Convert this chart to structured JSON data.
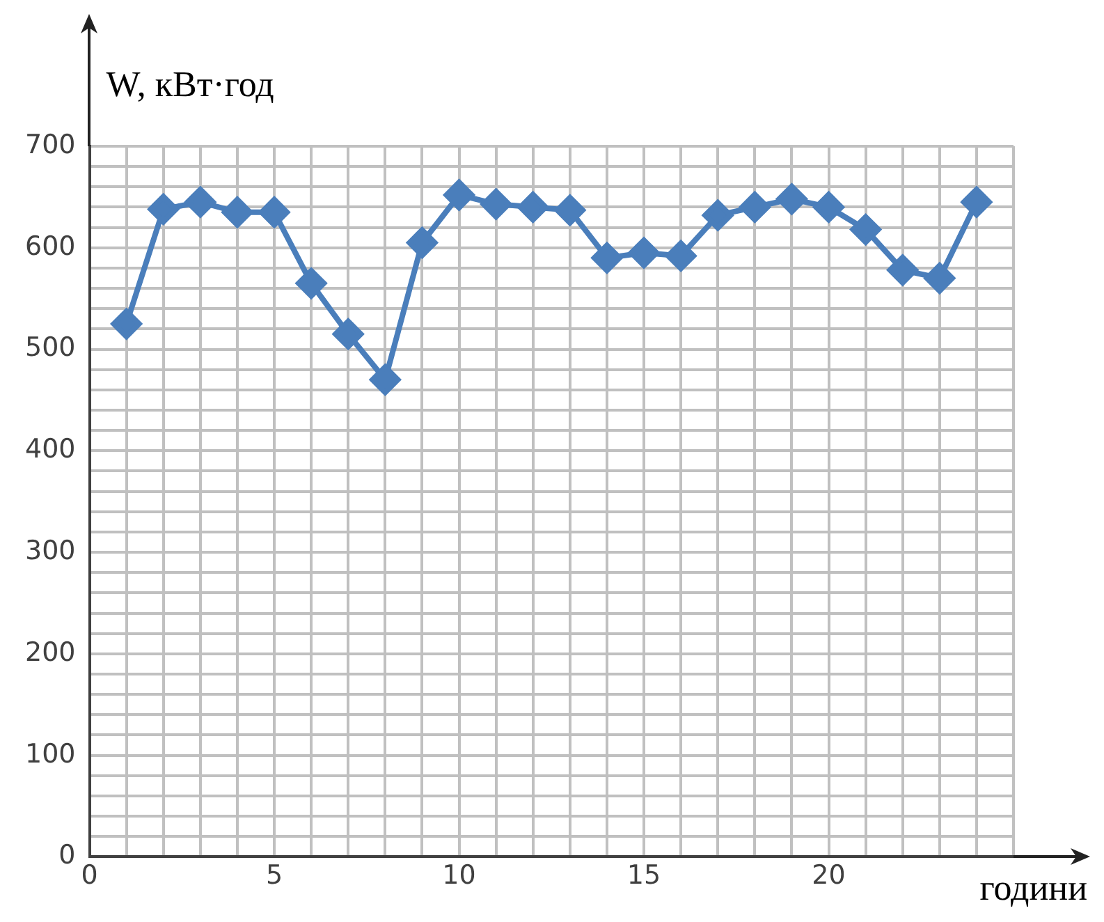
{
  "chart_data": {
    "type": "line",
    "xlabel": "години",
    "ylabel": "W, кВт·год",
    "x": [
      1,
      2,
      3,
      4,
      5,
      6,
      7,
      8,
      9,
      10,
      11,
      12,
      13,
      14,
      15,
      16,
      17,
      18,
      19,
      20,
      21,
      22,
      23,
      24
    ],
    "series": [
      {
        "color": "#4a7ebb",
        "values": [
          525,
          638,
          645,
          635,
          635,
          565,
          515,
          470,
          605,
          652,
          643,
          640,
          637,
          590,
          595,
          592,
          632,
          640,
          648,
          640,
          618,
          578,
          570,
          645
        ]
      }
    ],
    "xlim": [
      0,
      25
    ],
    "xticks": [
      0,
      {
        "value": 1,
        "label": null
      },
      {
        "value": 2,
        "label": null
      },
      {
        "value": 3,
        "label": null
      },
      {
        "value": 4,
        "label": null
      },
      5,
      {
        "value": 6,
        "label": null
      },
      {
        "value": 7,
        "label": null
      },
      {
        "value": 8,
        "label": null
      },
      {
        "value": 9,
        "label": null
      },
      10,
      {
        "value": 11,
        "label": null
      },
      {
        "value": 12,
        "label": null
      },
      {
        "value": 13,
        "label": null
      },
      {
        "value": 14,
        "label": null
      },
      15,
      {
        "value": 16,
        "label": null
      },
      {
        "value": 17,
        "label": null
      },
      {
        "value": 18,
        "label": null
      },
      {
        "value": 19,
        "label": null
      },
      20,
      {
        "value": 21,
        "label": null
      },
      {
        "value": 22,
        "label": null
      },
      {
        "value": 23,
        "label": null
      },
      {
        "value": 24,
        "label": null
      },
      {
        "value": 25,
        "label": null
      }
    ],
    "ylim": [
      0,
      700
    ],
    "yticks": [
      0,
      {
        "value": 20,
        "label": null
      },
      {
        "value": 40,
        "label": null
      },
      {
        "value": 60,
        "label": null
      },
      {
        "value": 80,
        "label": null
      },
      100,
      {
        "value": 120,
        "label": null
      },
      {
        "value": 140,
        "label": null
      },
      {
        "value": 160,
        "label": null
      },
      {
        "value": 180,
        "label": null
      },
      200,
      {
        "value": 220,
        "label": null
      },
      {
        "value": 240,
        "label": null
      },
      {
        "value": 260,
        "label": null
      },
      {
        "value": 280,
        "label": null
      },
      300,
      {
        "value": 320,
        "label": null
      },
      {
        "value": 340,
        "label": null
      },
      {
        "value": 360,
        "label": null
      },
      {
        "value": 380,
        "label": null
      },
      400,
      {
        "value": 420,
        "label": null
      },
      {
        "value": 440,
        "label": null
      },
      {
        "value": 460,
        "label": null
      },
      {
        "value": 480,
        "label": null
      },
      500,
      {
        "value": 520,
        "label": null
      },
      {
        "value": 540,
        "label": null
      },
      {
        "value": 560,
        "label": null
      },
      {
        "value": 580,
        "label": null
      },
      600,
      {
        "value": 620,
        "label": null
      },
      {
        "value": 640,
        "label": null
      },
      {
        "value": 660,
        "label": null
      },
      {
        "value": 680,
        "label": null
      },
      700
    ],
    "grid": true,
    "marker": "diamond",
    "line_style": "solid",
    "legend": false
  }
}
